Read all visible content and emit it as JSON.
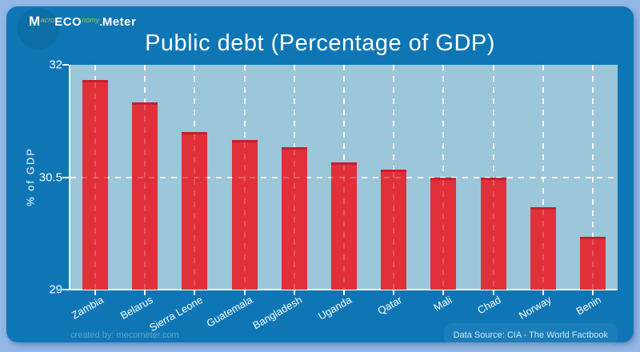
{
  "logo": {
    "m": "M",
    "acro": "acro",
    "eco": "ECO",
    "nomy": "nomy",
    "sep": ".",
    "meter": "Meter"
  },
  "title": "Public debt (Percentage of GDP)",
  "footer": {
    "created_by": "created by: mecometer.com",
    "data_source": "Data Source: CIA - The World Factbook"
  },
  "chart_data": {
    "type": "bar",
    "title": "Public debt (Percentage of GDP)",
    "xlabel": "",
    "ylabel": "% of GDP",
    "categories": [
      "Zambia",
      "Belarus",
      "Sierra Leone",
      "Guatemala",
      "Bangladesh",
      "Uganda",
      "Qatar",
      "Mali",
      "Chad",
      "Norway",
      "Benin"
    ],
    "values": [
      31.8,
      31.5,
      31.1,
      31.0,
      30.9,
      30.7,
      30.6,
      30.5,
      30.5,
      30.1,
      29.7
    ],
    "ylim": [
      29,
      32
    ],
    "yticks": [
      32,
      30.5,
      29
    ],
    "grid": true,
    "legend": false,
    "colors": {
      "bar": "#e1303a",
      "bar_cap": "#c51f2d",
      "plot_bg": "#9cc6d9",
      "card_bg": "#0e76b5",
      "frame_bg": "#93b7e6",
      "grid": "#ffffff",
      "text": "#ffffff",
      "footer_left": "#5ea7cb",
      "footer_right": "#cde7f2",
      "logo_green": "#9ccc3d"
    }
  }
}
